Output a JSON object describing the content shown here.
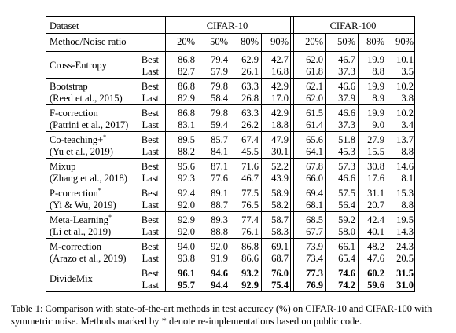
{
  "table": {
    "header": {
      "dataset_label": "Dataset",
      "method_label": "Method/Noise ratio",
      "groups": [
        "CIFAR-10",
        "CIFAR-100"
      ],
      "noise_ratios": [
        "20%",
        "50%",
        "80%",
        "90%",
        "20%",
        "50%",
        "80%",
        "90%"
      ]
    },
    "rows": [
      {
        "name": "Cross-Entropy",
        "ref": "",
        "star": false,
        "bold": false,
        "best": [
          "86.8",
          "79.4",
          "62.9",
          "42.7",
          "62.0",
          "46.7",
          "19.9",
          "10.1"
        ],
        "last": [
          "82.7",
          "57.9",
          "26.1",
          "16.8",
          "61.8",
          "37.3",
          "8.8",
          "3.5"
        ]
      },
      {
        "name": "Bootstrap",
        "ref": "(Reed et al., 2015)",
        "star": false,
        "bold": false,
        "best": [
          "86.8",
          "79.8",
          "63.3",
          "42.9",
          "62.1",
          "46.6",
          "19.9",
          "10.2"
        ],
        "last": [
          "82.9",
          "58.4",
          "26.8",
          "17.0",
          "62.0",
          "37.9",
          "8.9",
          "3.8"
        ]
      },
      {
        "name": "F-correction",
        "ref": "(Patrini et al., 2017)",
        "star": false,
        "bold": false,
        "best": [
          "86.8",
          "79.8",
          "63.3",
          "42.9",
          "61.5",
          "46.6",
          "19.9",
          "10.2"
        ],
        "last": [
          "83.1",
          "59.4",
          "26.2",
          "18.8",
          "61.4",
          "37.3",
          "9.0",
          "3.4"
        ]
      },
      {
        "name": "Co-teaching+",
        "ref": "(Yu et al., 2019)",
        "star": true,
        "bold": false,
        "best": [
          "89.5",
          "85.7",
          "67.4",
          "47.9",
          "65.6",
          "51.8",
          "27.9",
          "13.7"
        ],
        "last": [
          "88.2",
          "84.1",
          "45.5",
          "30.1",
          "64.1",
          "45.3",
          "15.5",
          "8.8"
        ]
      },
      {
        "name": "Mixup",
        "ref": "(Zhang et al., 2018)",
        "star": false,
        "bold": false,
        "best": [
          "95.6",
          "87.1",
          "71.6",
          "52.2",
          "67.8",
          "57.3",
          "30.8",
          "14.6"
        ],
        "last": [
          "92.3",
          "77.6",
          "46.7",
          "43.9",
          "66.0",
          "46.6",
          "17.6",
          "8.1"
        ]
      },
      {
        "name": "P-correction",
        "ref": "(Yi & Wu, 2019)",
        "star": true,
        "bold": false,
        "best": [
          "92.4",
          "89.1",
          "77.5",
          "58.9",
          "69.4",
          "57.5",
          "31.1",
          "15.3"
        ],
        "last": [
          "92.0",
          "88.7",
          "76.5",
          "58.2",
          "68.1",
          "56.4",
          "20.7",
          "8.8"
        ]
      },
      {
        "name": "Meta-Learning",
        "ref": "(Li et al., 2019)",
        "star": true,
        "bold": false,
        "best": [
          "92.9",
          "89.3",
          "77.4",
          "58.7",
          "68.5",
          "59.2",
          "42.4",
          "19.5"
        ],
        "last": [
          "92.0",
          "88.8",
          "76.1",
          "58.3",
          "67.7",
          "58.0",
          "40.1",
          "14.3"
        ]
      },
      {
        "name": "M-correction",
        "ref": "(Arazo et al., 2019)",
        "star": false,
        "bold": false,
        "best": [
          "94.0",
          "92.0",
          "86.8",
          "69.1",
          "73.9",
          "66.1",
          "48.2",
          "24.3"
        ],
        "last": [
          "93.8",
          "91.9",
          "86.6",
          "68.7",
          "73.4",
          "65.4",
          "47.6",
          "20.5"
        ]
      },
      {
        "name": "DivideMix",
        "ref": "",
        "star": false,
        "bold": true,
        "best": [
          "96.1",
          "94.6",
          "93.2",
          "76.0",
          "77.3",
          "74.6",
          "60.2",
          "31.5"
        ],
        "last": [
          "95.7",
          "94.4",
          "92.9",
          "75.4",
          "76.9",
          "74.2",
          "59.6",
          "31.0"
        ]
      }
    ],
    "best_label": "Best",
    "last_label": "Last",
    "star_mark": "*"
  },
  "caption": "Table 1: Comparison with state-of-the-art methods in test accuracy (%) on CIFAR-10 and CIFAR-100 with symmetric noise. Methods marked by * denote re-implementations based on public code."
}
